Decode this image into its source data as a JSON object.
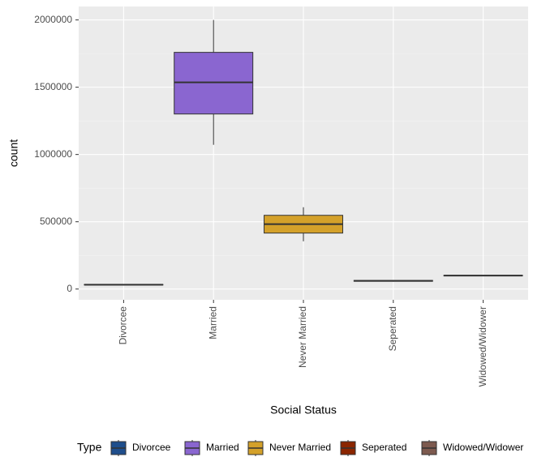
{
  "chart_data": {
    "type": "boxplot",
    "x_label": "Social Status",
    "y_label": "count",
    "legend_title": "Type",
    "categories": [
      "Divorcee",
      "Married",
      "Never Married",
      "Seperated",
      "Widowed/Widower"
    ],
    "colors": [
      "#1f4e8c",
      "#8a66d0",
      "#d4a12a",
      "#8b2500",
      "#7d5a4f"
    ],
    "boxes": [
      {
        "min": 28000,
        "q1": 30000,
        "median": 32000,
        "q3": 34000,
        "max": 36000
      },
      {
        "min": 1072000,
        "q1": 1301000,
        "median": 1536000,
        "q3": 1759000,
        "max": 2000000
      },
      {
        "min": 355000,
        "q1": 416000,
        "median": 482000,
        "q3": 548000,
        "max": 608000
      },
      {
        "min": 55000,
        "q1": 58000,
        "median": 61000,
        "q3": 64000,
        "max": 67000
      },
      {
        "min": 96000,
        "q1": 98000,
        "median": 100000,
        "q3": 102000,
        "max": 104000
      }
    ],
    "ylim": [
      -80000,
      2100000
    ],
    "yticks": [
      0,
      500000,
      1000000,
      1500000,
      2000000
    ],
    "grid": true,
    "legend_position": "bottom"
  }
}
